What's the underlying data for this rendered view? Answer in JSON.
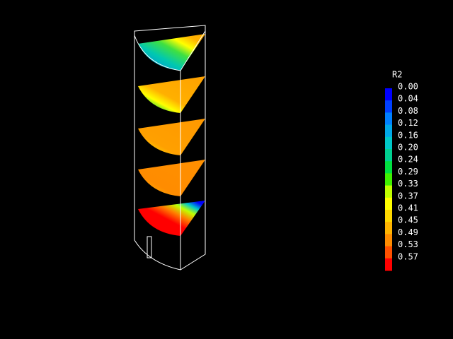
{
  "colorbar": {
    "title": "R2",
    "labels": [
      "0.00",
      "0.04",
      "0.08",
      "0.12",
      "0.16",
      "0.20",
      "0.24",
      "0.29",
      "0.33",
      "0.37",
      "0.41",
      "0.45",
      "0.49",
      "0.53",
      "0.57"
    ],
    "colors": [
      "#0000ff",
      "#0040ff",
      "#0080ff",
      "#00a8e8",
      "#00c8c8",
      "#00d090",
      "#00e040",
      "#40f000",
      "#c0ff00",
      "#ffff00",
      "#ffd800",
      "#ffb400",
      "#ff8c00",
      "#ff5000",
      "#ff0000"
    ]
  }
}
